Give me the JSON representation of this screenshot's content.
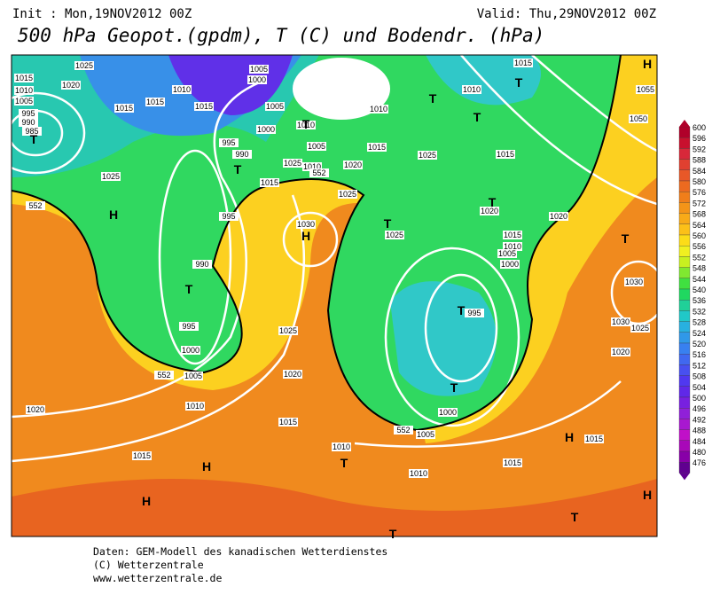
{
  "header": {
    "init": "Init : Mon,19NOV2012 00Z",
    "valid": "Valid: Thu,29NOV2012 00Z",
    "title": "500 hPa Geopot.(gpdm), T (C) und Bodendr. (hPa)"
  },
  "colorbar": {
    "levels": [
      600,
      596,
      592,
      588,
      584,
      580,
      576,
      572,
      568,
      564,
      560,
      556,
      552,
      548,
      544,
      540,
      536,
      532,
      528,
      524,
      520,
      516,
      512,
      508,
      504,
      500,
      496,
      492,
      488,
      484,
      480,
      476
    ],
    "colors": [
      "#b0002a",
      "#c8102e",
      "#d8283a",
      "#e04030",
      "#e85828",
      "#ec6a20",
      "#f07e1a",
      "#f49418",
      "#f8aa18",
      "#fcc018",
      "#fcdc18",
      "#f0f020",
      "#c8f020",
      "#80e830",
      "#40e040",
      "#20d860",
      "#20d098",
      "#20c8c8",
      "#28b0e0",
      "#3098e8",
      "#3880f0",
      "#4068f0",
      "#4850f0",
      "#5038f0",
      "#6028e8",
      "#7820e0",
      "#9020d8",
      "#a818d0",
      "#c010c8",
      "#a808b8",
      "#8800a8",
      "#600090"
    ]
  },
  "map": {
    "labels": [
      "1025",
      "1015",
      "1010",
      "1005",
      "995",
      "990",
      "985",
      "1020",
      "1015",
      "1015",
      "1015",
      "1010",
      "1005",
      "1000",
      "1005",
      "1000",
      "995",
      "990",
      "1010",
      "1005",
      "1025",
      "1010",
      "1015",
      "1020",
      "1025",
      "995",
      "1030",
      "990",
      "995",
      "1000",
      "1005",
      "1025",
      "1020",
      "1010",
      "1015",
      "1020",
      "1015",
      "1010",
      "1005",
      "1000",
      "1010",
      "1015",
      "995",
      "1015",
      "1010",
      "1005",
      "1000",
      "1020",
      "1020",
      "1025",
      "1015",
      "1025",
      "1015",
      "1010",
      "1010",
      "1015",
      "1055",
      "1050",
      "1030",
      "1030",
      "1025",
      "1020",
      "1015",
      "1025",
      "552",
      "552",
      "552",
      "552"
    ],
    "highs": [
      "H",
      "H",
      "H",
      "H",
      "H",
      "H",
      "H"
    ],
    "lows": [
      "T",
      "T",
      "T",
      "T",
      "T",
      "T",
      "T",
      "T",
      "T",
      "T",
      "T",
      "T",
      "T",
      "T",
      "T"
    ]
  },
  "footer": [
    "Daten: GEM-Modell des kanadischen Wetterdienstes",
    "(C) Wetterzentrale",
    "www.wetterzentrale.de"
  ]
}
